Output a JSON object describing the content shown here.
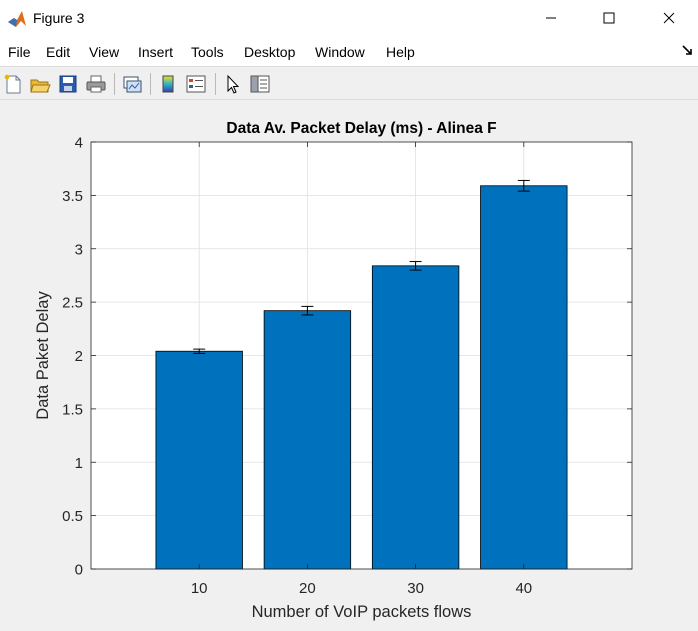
{
  "window": {
    "title": "Figure 3",
    "controls": {
      "minimize": "minimize-icon",
      "maximize": "maximize-icon",
      "close": "close-icon"
    }
  },
  "menu": {
    "items": [
      "File",
      "Edit",
      "View",
      "Insert",
      "Tools",
      "Desktop",
      "Window",
      "Help"
    ]
  },
  "toolbar": {
    "tools": [
      "new-figure-icon",
      "open-file-icon",
      "save-icon",
      "print-icon",
      "link-plot-icon",
      "colorbar-icon",
      "legend-icon",
      "pointer-icon",
      "property-inspector-icon"
    ]
  },
  "colors": {
    "bar": "#0072BD",
    "bar_edge": "#000000",
    "grid": "#dfdfdf",
    "figure_bg": "#f0f0f0"
  },
  "chart_data": {
    "type": "bar",
    "title": "Data Av. Packet Delay (ms) - Alinea F",
    "xlabel": "Number of VoIP packets flows",
    "ylabel": "Data Paket Delay",
    "categories": [
      "10",
      "20",
      "30",
      "40"
    ],
    "x": [
      10,
      20,
      30,
      40
    ],
    "values": [
      2.04,
      2.42,
      2.84,
      3.59
    ],
    "error": [
      0.02,
      0.04,
      0.04,
      0.05
    ],
    "xlim": [
      0,
      50
    ],
    "ylim": [
      0,
      4
    ],
    "yticks": [
      0,
      0.5,
      1,
      1.5,
      2,
      2.5,
      3,
      3.5,
      4
    ],
    "ytick_labels": [
      "0",
      "0.5",
      "1",
      "1.5",
      "2",
      "2.5",
      "3",
      "3.5",
      "4"
    ],
    "grid": true,
    "legend": "none"
  }
}
